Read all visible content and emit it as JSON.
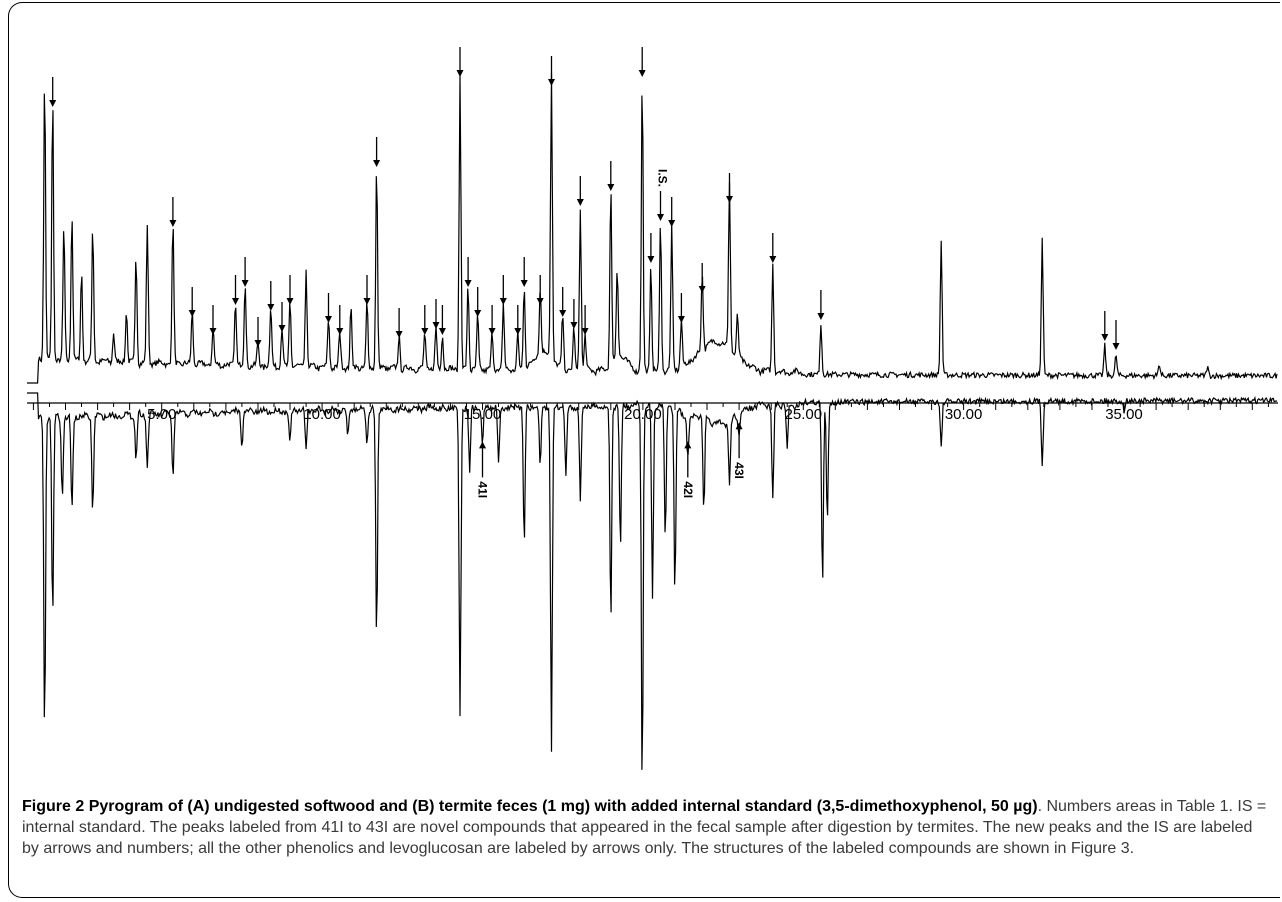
{
  "chart_data": {
    "type": "line",
    "title": "",
    "xlabel": "",
    "ylabel": "",
    "xlim": [
      0.8,
      39.8
    ],
    "x_ticks": [
      "5.00",
      "10.00",
      "15.00",
      "20.00",
      "25.00",
      "30.00",
      "35.00"
    ],
    "x_tick_values": [
      5,
      10,
      15,
      20,
      25,
      30,
      35
    ],
    "grid": false,
    "legend": "none",
    "line_color": "#000000",
    "series": [
      {
        "peaks": [
          {
            "t": 1.35,
            "h": 0.95
          },
          {
            "t": 1.6,
            "h": 0.88,
            "arrow": true
          },
          {
            "t": 1.95,
            "h": 0.45
          },
          {
            "t": 2.2,
            "h": 0.5
          },
          {
            "t": 2.5,
            "h": 0.3
          },
          {
            "t": 2.85,
            "h": 0.45
          },
          {
            "t": 3.5,
            "h": 0.1
          },
          {
            "t": 3.9,
            "h": 0.18
          },
          {
            "t": 4.2,
            "h": 0.36
          },
          {
            "t": 4.55,
            "h": 0.46
          },
          {
            "t": 5.35,
            "h": 0.48,
            "arrow": true
          },
          {
            "t": 5.95,
            "h": 0.18,
            "arrow": true
          },
          {
            "t": 6.6,
            "h": 0.12,
            "arrow": true
          },
          {
            "t": 7.3,
            "h": 0.22,
            "arrow": true
          },
          {
            "t": 7.6,
            "h": 0.28,
            "arrow": true
          },
          {
            "t": 8.0,
            "h": 0.08,
            "arrow": true
          },
          {
            "t": 8.4,
            "h": 0.2,
            "arrow": true
          },
          {
            "t": 8.75,
            "h": 0.13,
            "arrow": true
          },
          {
            "t": 9.0,
            "h": 0.22,
            "arrow": true
          },
          {
            "t": 9.5,
            "h": 0.32
          },
          {
            "t": 10.2,
            "h": 0.16,
            "arrow": true
          },
          {
            "t": 10.55,
            "h": 0.12,
            "arrow": true
          },
          {
            "t": 10.9,
            "h": 0.2
          },
          {
            "t": 11.4,
            "h": 0.22,
            "arrow": true
          },
          {
            "t": 11.7,
            "h": 0.68,
            "arrow": true
          },
          {
            "t": 12.4,
            "h": 0.11,
            "arrow": true
          },
          {
            "t": 13.2,
            "h": 0.12,
            "arrow": true
          },
          {
            "t": 13.55,
            "h": 0.14,
            "arrow": true
          },
          {
            "t": 13.75,
            "h": 0.12,
            "arrow": true
          },
          {
            "t": 14.3,
            "h": 0.98,
            "arrow": true
          },
          {
            "t": 14.55,
            "h": 0.28,
            "arrow": true
          },
          {
            "t": 14.85,
            "h": 0.18,
            "arrow": true
          },
          {
            "t": 15.3,
            "h": 0.12,
            "arrow": true
          },
          {
            "t": 15.65,
            "h": 0.22,
            "arrow": true
          },
          {
            "t": 16.1,
            "h": 0.12,
            "arrow": true
          },
          {
            "t": 16.3,
            "h": 0.28,
            "arrow": true
          },
          {
            "t": 16.8,
            "h": 0.22,
            "arrow": true
          },
          {
            "t": 17.15,
            "h": 0.95,
            "arrow": true
          },
          {
            "t": 17.5,
            "h": 0.18,
            "arrow": true
          },
          {
            "t": 17.85,
            "h": 0.14,
            "arrow": true
          },
          {
            "t": 18.05,
            "h": 0.55,
            "arrow": true
          },
          {
            "t": 18.2,
            "h": 0.12,
            "arrow": true
          },
          {
            "t": 19.0,
            "h": 0.6,
            "arrow": true
          },
          {
            "t": 19.2,
            "h": 0.3
          },
          {
            "t": 19.98,
            "h": 0.98,
            "arrow": true
          },
          {
            "t": 20.25,
            "h": 0.36,
            "arrow": true
          },
          {
            "t": 20.55,
            "h": 0.5,
            "arrow": true,
            "label": "I.S."
          },
          {
            "t": 20.9,
            "h": 0.48,
            "arrow": true
          },
          {
            "t": 21.2,
            "h": 0.16,
            "arrow": true
          },
          {
            "t": 21.85,
            "h": 0.26,
            "arrow": true
          },
          {
            "t": 22.7,
            "h": 0.56,
            "arrow": true
          },
          {
            "t": 22.95,
            "h": 0.14
          },
          {
            "t": 24.05,
            "h": 0.36,
            "arrow": true
          },
          {
            "t": 25.55,
            "h": 0.17,
            "arrow": true
          },
          {
            "t": 29.3,
            "h": 0.45
          },
          {
            "t": 32.45,
            "h": 0.46
          },
          {
            "t": 34.4,
            "h": 0.1,
            "arrow": true
          },
          {
            "t": 34.75,
            "h": 0.07,
            "arrow": true
          },
          {
            "t": 36.1,
            "h": 0.04
          },
          {
            "t": 37.6,
            "h": 0.03
          }
        ]
      },
      {
        "peaks": [
          {
            "t": 1.35,
            "h": 1.0
          },
          {
            "t": 1.6,
            "h": 0.62
          },
          {
            "t": 1.9,
            "h": 0.25
          },
          {
            "t": 2.2,
            "h": 0.3
          },
          {
            "t": 2.85,
            "h": 0.3
          },
          {
            "t": 4.2,
            "h": 0.14
          },
          {
            "t": 4.55,
            "h": 0.16
          },
          {
            "t": 5.35,
            "h": 0.2
          },
          {
            "t": 7.5,
            "h": 0.1
          },
          {
            "t": 9.0,
            "h": 0.1
          },
          {
            "t": 9.5,
            "h": 0.12
          },
          {
            "t": 10.8,
            "h": 0.08
          },
          {
            "t": 11.4,
            "h": 0.1
          },
          {
            "t": 11.7,
            "h": 0.73
          },
          {
            "t": 14.3,
            "h": 0.97
          },
          {
            "t": 14.6,
            "h": 0.2
          },
          {
            "t": 15.0,
            "h": 0.12,
            "label": "41I"
          },
          {
            "t": 15.5,
            "h": 0.18
          },
          {
            "t": 16.3,
            "h": 0.43
          },
          {
            "t": 16.8,
            "h": 0.2
          },
          {
            "t": 17.15,
            "h": 1.08
          },
          {
            "t": 17.6,
            "h": 0.22
          },
          {
            "t": 18.05,
            "h": 0.3
          },
          {
            "t": 19.0,
            "h": 0.68
          },
          {
            "t": 19.3,
            "h": 0.45
          },
          {
            "t": 19.98,
            "h": 1.2
          },
          {
            "t": 20.3,
            "h": 0.6
          },
          {
            "t": 20.7,
            "h": 0.42
          },
          {
            "t": 21.0,
            "h": 0.58
          },
          {
            "t": 21.4,
            "h": 0.12,
            "label": "42I"
          },
          {
            "t": 21.9,
            "h": 0.3
          },
          {
            "t": 22.7,
            "h": 0.2
          },
          {
            "t": 23.0,
            "h": 0.06,
            "label": "43I"
          },
          {
            "t": 24.05,
            "h": 0.3
          },
          {
            "t": 24.5,
            "h": 0.14
          },
          {
            "t": 25.6,
            "h": 0.58
          },
          {
            "t": 25.75,
            "h": 0.38
          },
          {
            "t": 29.3,
            "h": 0.14
          },
          {
            "t": 32.45,
            "h": 0.2
          },
          {
            "t": 35.0,
            "h": 0.03
          }
        ]
      }
    ]
  },
  "caption": {
    "fig_label": "Figure 2",
    "bold_text": "Pyrogram of (A) undigested softwood and (B) termite feces (1 mg) with added internal standard (3,5-dimethoxyphenol, 50 µg)",
    "body_text": ". Numbers areas in Table 1. IS = internal standard. The peaks labeled from 41I to 43I are novel compounds that appeared in the fecal sample after digestion by termites. The new peaks and the IS are labeled by arrows and numbers; all the other phenolics and levoglucosan are labeled by arrows only. The structures of the labeled compounds are shown in Figure 3."
  }
}
